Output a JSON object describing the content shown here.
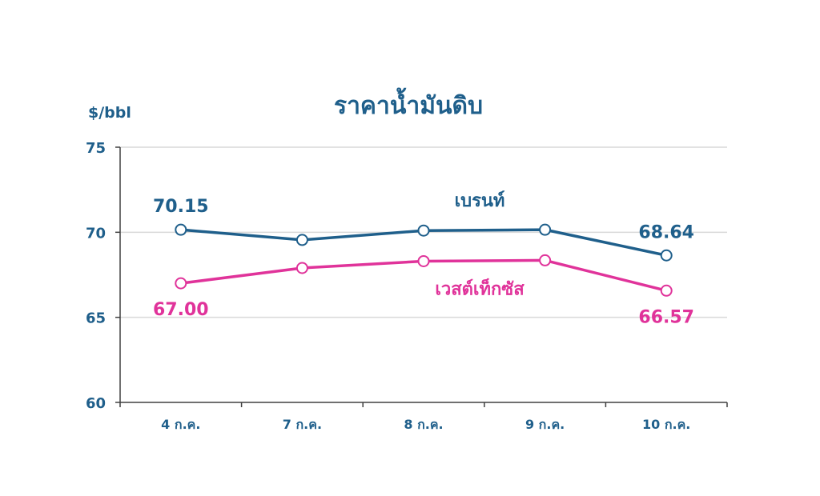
{
  "chart_data": {
    "type": "line",
    "title": "ราคาน้ำมันดิบ",
    "ylabel": "$/bbl",
    "xlabel": "",
    "ylim": [
      60,
      75
    ],
    "yticks": [
      60,
      65,
      70,
      75
    ],
    "grid": true,
    "categories": [
      "4 ก.ค.",
      "7 ก.ค.",
      "8 ก.ค.",
      "9 ก.ค.",
      "10 ก.ค."
    ],
    "series": [
      {
        "name": "เบรนท์",
        "color": "#1f5f8b",
        "values": [
          70.15,
          69.55,
          70.1,
          70.15,
          68.64
        ],
        "labels": [
          "70.15",
          "",
          "",
          "",
          "68.64"
        ]
      },
      {
        "name": "เวสต์เท็กซัส",
        "color": "#e0339a",
        "values": [
          67.0,
          67.9,
          68.3,
          68.35,
          66.57
        ],
        "labels": [
          "67.00",
          "",
          "",
          "",
          "66.57"
        ]
      }
    ],
    "colors": {
      "axis_text": "#1f5f8b",
      "grid": "#d9d9d9",
      "axis": "#404040"
    }
  }
}
